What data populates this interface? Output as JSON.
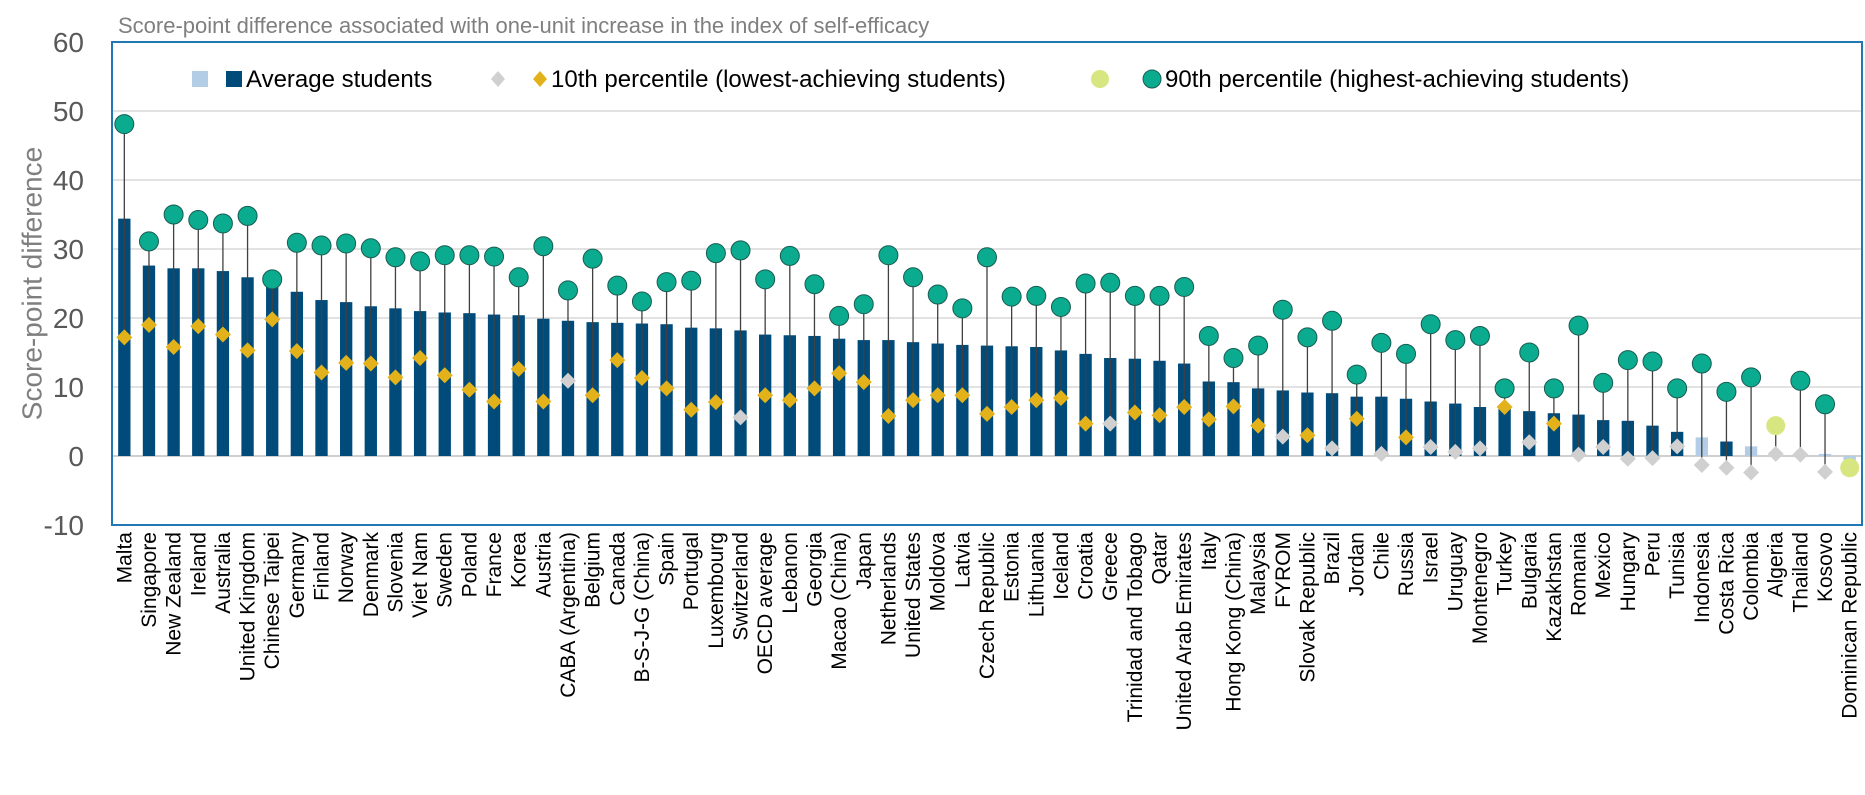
{
  "chart_data": {
    "type": "bar",
    "subtitle": "Score-point difference associated with one-unit increase in the index of self-efficacy",
    "ylabel": "Score-point difference",
    "xlabel": "",
    "ylim": [
      -10,
      60
    ],
    "yticks": [
      60,
      50,
      40,
      30,
      20,
      10,
      0,
      -10
    ],
    "grid": true,
    "legend_position": "top",
    "colors": {
      "avg_sig": "#004b7a",
      "avg_nonsig": "#b4cde6",
      "p10_sig": "#e3b21b",
      "p10_nonsig": "#d0d0d0",
      "p90_sig": "#0aab8f",
      "p90_nonsig": "#d8e682",
      "stem": "#404040",
      "frame": "#1f77b4",
      "grid": "#d9d9d9"
    },
    "legend": [
      {
        "label": "Average students"
      },
      {
        "label": "10th percentile (lowest-achieving students)"
      },
      {
        "label": "90th percentile (highest-achieving students)"
      }
    ],
    "categories": [
      "Malta",
      "Singapore",
      "New Zealand",
      "Ireland",
      "Australia",
      "United Kingdom",
      "Chinese Taipei",
      "Germany",
      "Finland",
      "Norway",
      "Denmark",
      "Slovenia",
      "Viet Nam",
      "Sweden",
      "Poland",
      "France",
      "Korea",
      "Austria",
      "CABA (Argentina)",
      "Belgium",
      "Canada",
      "B-S-J-G (China)",
      "Spain",
      "Portugal",
      "Luxembourg",
      "Switzerland",
      "OECD average",
      "Lebanon",
      "Georgia",
      "Macao (China)",
      "Japan",
      "Netherlands",
      "United States",
      "Moldova",
      "Latvia",
      "Czech Republic",
      "Estonia",
      "Lithuania",
      "Iceland",
      "Croatia",
      "Greece",
      "Trinidad and Tobago",
      "Qatar",
      "United Arab Emirates",
      "Italy",
      "Hong Kong (China)",
      "Malaysia",
      "FYROM",
      "Slovak Republic",
      "Brazil",
      "Jordan",
      "Chile",
      "Russia",
      "Israel",
      "Uruguay",
      "Montenegro",
      "Turkey",
      "Bulgaria",
      "Kazakhstan",
      "Romania",
      "Mexico",
      "Hungary",
      "Peru",
      "Tunisia",
      "Indonesia",
      "Costa Rica",
      "Colombia",
      "Algeria",
      "Thailand",
      "Kosovo",
      "Dominican Republic"
    ],
    "series": [
      {
        "name": "Average students",
        "values": [
          34.4,
          27.6,
          27.2,
          27.2,
          26.8,
          25.9,
          24.6,
          23.8,
          22.6,
          22.3,
          21.7,
          21.4,
          21.0,
          20.8,
          20.7,
          20.5,
          20.4,
          19.9,
          19.6,
          19.4,
          19.3,
          19.2,
          19.1,
          18.6,
          18.5,
          18.2,
          17.6,
          17.5,
          17.4,
          17.0,
          16.8,
          16.8,
          16.5,
          16.3,
          16.1,
          16.0,
          15.9,
          15.8,
          15.3,
          14.8,
          14.2,
          14.1,
          13.8,
          13.4,
          10.8,
          10.7,
          9.8,
          9.5,
          9.2,
          9.1,
          8.6,
          8.6,
          8.3,
          7.9,
          7.6,
          7.1,
          7.1,
          6.5,
          6.2,
          6.0,
          5.2,
          5.1,
          4.4,
          3.5,
          2.7,
          2.1,
          1.4,
          0.3,
          0.2,
          0.3,
          -1.5
        ],
        "significant": [
          true,
          true,
          true,
          true,
          true,
          true,
          true,
          true,
          true,
          true,
          true,
          true,
          true,
          true,
          true,
          true,
          true,
          true,
          true,
          true,
          true,
          true,
          true,
          true,
          true,
          true,
          true,
          true,
          true,
          true,
          true,
          true,
          true,
          true,
          true,
          true,
          true,
          true,
          true,
          true,
          true,
          true,
          true,
          true,
          true,
          true,
          true,
          true,
          true,
          true,
          true,
          true,
          true,
          true,
          true,
          true,
          true,
          true,
          true,
          true,
          true,
          true,
          true,
          true,
          false,
          true,
          false,
          false,
          false,
          false,
          false
        ]
      },
      {
        "name": "10th percentile (lowest-achieving students)",
        "values": [
          17.2,
          19.0,
          15.8,
          18.8,
          17.6,
          15.3,
          19.8,
          15.2,
          12.1,
          13.5,
          13.4,
          11.4,
          14.2,
          11.7,
          9.6,
          7.9,
          12.6,
          7.9,
          10.9,
          8.8,
          13.9,
          11.3,
          9.8,
          6.7,
          7.8,
          5.6,
          8.8,
          8.1,
          9.8,
          12.0,
          10.7,
          5.8,
          8.1,
          8.8,
          8.8,
          6.1,
          7.1,
          8.1,
          8.4,
          4.7,
          4.7,
          6.3,
          5.9,
          7.1,
          5.3,
          7.2,
          4.4,
          2.8,
          3.0,
          1.1,
          5.4,
          0.3,
          2.7,
          1.3,
          0.6,
          1.1,
          7.1,
          2.0,
          4.7,
          0.2,
          1.3,
          -0.4,
          -0.3,
          1.4,
          -1.3,
          -1.7,
          -2.4,
          0.3,
          0.2,
          -2.3,
          -1.7
        ],
        "significant": [
          true,
          true,
          true,
          true,
          true,
          true,
          true,
          true,
          true,
          true,
          true,
          true,
          true,
          true,
          true,
          true,
          true,
          true,
          false,
          true,
          true,
          true,
          true,
          true,
          true,
          false,
          true,
          true,
          true,
          true,
          true,
          true,
          true,
          true,
          true,
          true,
          true,
          true,
          true,
          true,
          false,
          true,
          true,
          true,
          true,
          true,
          true,
          false,
          true,
          false,
          true,
          false,
          true,
          false,
          false,
          false,
          true,
          false,
          true,
          false,
          false,
          false,
          false,
          false,
          false,
          false,
          false,
          false,
          false,
          false,
          true
        ]
      },
      {
        "name": "90th percentile (highest-achieving students)",
        "values": [
          48.1,
          31.1,
          35.0,
          34.2,
          33.7,
          34.8,
          25.6,
          30.9,
          30.5,
          30.8,
          30.1,
          28.8,
          28.2,
          29.1,
          29.1,
          28.9,
          25.9,
          30.4,
          24.0,
          28.6,
          24.7,
          22.4,
          25.2,
          25.4,
          29.4,
          29.8,
          25.6,
          29.0,
          24.9,
          20.3,
          22.0,
          29.1,
          25.9,
          23.4,
          21.4,
          28.8,
          23.1,
          23.2,
          21.6,
          25.0,
          25.1,
          23.2,
          23.2,
          24.5,
          17.4,
          14.2,
          16.0,
          21.2,
          17.2,
          19.6,
          11.8,
          16.4,
          14.8,
          19.1,
          16.8,
          17.4,
          9.8,
          15.0,
          9.8,
          18.9,
          10.6,
          13.9,
          13.7,
          9.8,
          13.4,
          9.3,
          11.4,
          4.4,
          10.9,
          7.5,
          -1.7
        ],
        "significant": [
          true,
          true,
          true,
          true,
          true,
          true,
          true,
          true,
          true,
          true,
          true,
          true,
          true,
          true,
          true,
          true,
          true,
          true,
          true,
          true,
          true,
          true,
          true,
          true,
          true,
          true,
          true,
          true,
          true,
          true,
          true,
          true,
          true,
          true,
          true,
          true,
          true,
          true,
          true,
          true,
          true,
          true,
          true,
          true,
          true,
          true,
          true,
          true,
          true,
          true,
          true,
          true,
          true,
          true,
          true,
          true,
          true,
          true,
          true,
          true,
          true,
          true,
          true,
          true,
          true,
          true,
          true,
          false,
          true,
          true,
          false
        ]
      }
    ]
  }
}
